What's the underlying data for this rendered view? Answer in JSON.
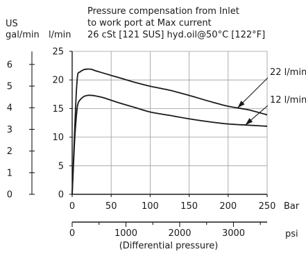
{
  "chart_data": {
    "type": "line",
    "title_lines": [
      "Pressure compensation from Inlet",
      "to work port at Max current",
      "26 cSt [121 SUS] hyd.oil@50°C [122°F]"
    ],
    "left_axis_label_lines": [
      "US",
      "gal/min"
    ],
    "left_axis_ticks": [
      "0",
      "1",
      "2",
      "3",
      "4",
      "5",
      "6"
    ],
    "y_axis_label": "l/min",
    "y_ticks": [
      "0",
      "5",
      "10",
      "15",
      "20",
      "25"
    ],
    "ylim": [
      0,
      25
    ],
    "x_ticks": [
      "0",
      "50",
      "100",
      "150",
      "200",
      "250"
    ],
    "x_unit": "Bar",
    "xlim": [
      0,
      250
    ],
    "secondary_x_ticks": [
      "0",
      "1000",
      "2000",
      "3000"
    ],
    "secondary_x_unit": "psi",
    "secondary_x_caption": "(Differential pressure)",
    "grid": true,
    "series": [
      {
        "name": "22 l/min",
        "x": [
          0,
          3,
          5,
          7,
          10,
          15,
          20,
          25,
          30,
          40,
          60,
          80,
          100,
          125,
          150,
          175,
          200,
          225,
          250
        ],
        "y": [
          0,
          10.5,
          17,
          20.8,
          21.4,
          21.8,
          21.9,
          21.85,
          21.6,
          21.2,
          20.4,
          19.6,
          18.9,
          18.2,
          17.3,
          16.3,
          15.4,
          14.8,
          13.9
        ]
      },
      {
        "name": "12 l/min",
        "x": [
          0,
          3,
          5,
          7,
          10,
          15,
          20,
          25,
          30,
          40,
          60,
          80,
          100,
          125,
          150,
          175,
          200,
          225,
          250
        ],
        "y": [
          0,
          9,
          13,
          15.6,
          16.5,
          17.1,
          17.3,
          17.3,
          17.2,
          16.9,
          16,
          15.2,
          14.4,
          13.8,
          13.2,
          12.7,
          12.3,
          12.1,
          11.9
        ]
      }
    ],
    "annotations": [
      {
        "text": "22 l/min",
        "series": 0,
        "at_x": 212
      },
      {
        "text": "12 l/min",
        "series": 1,
        "at_x": 222
      }
    ]
  }
}
